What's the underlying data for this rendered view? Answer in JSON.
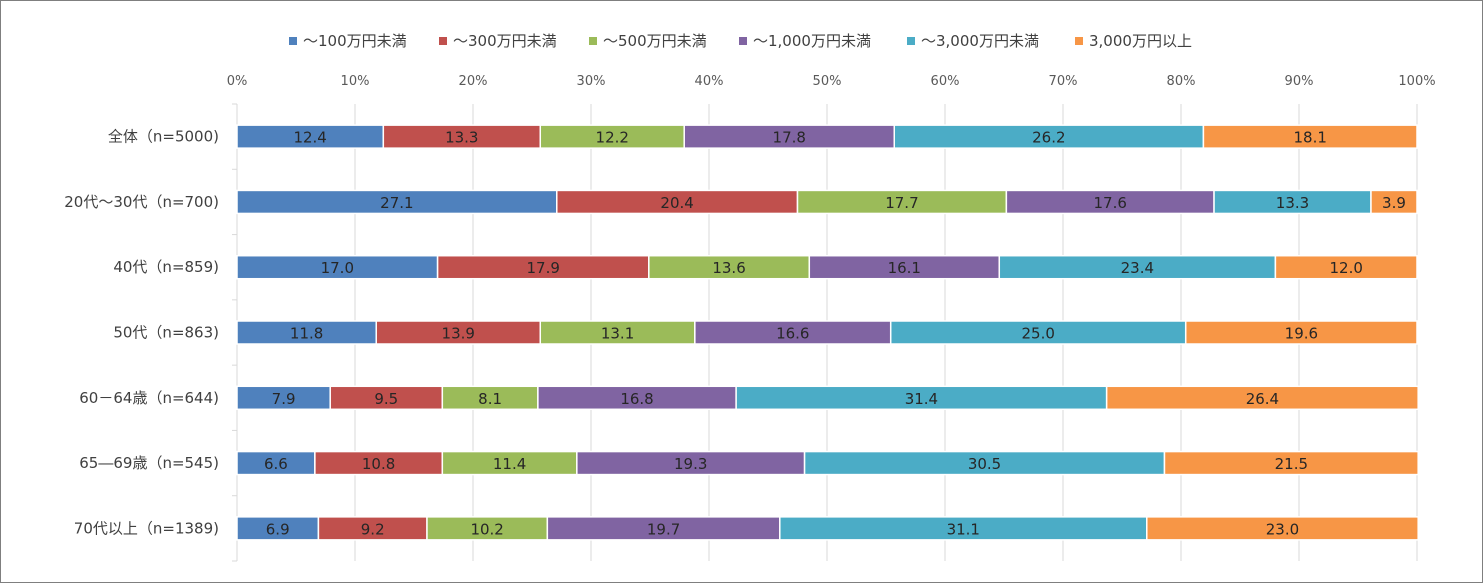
{
  "chart_data": {
    "type": "bar",
    "orientation": "horizontal",
    "stacked": "percent",
    "categories": [
      "全体（n=5000)",
      "20代～30代（n=700)",
      "40代（n=859)",
      "50代（n=863)",
      "60－64歳（n=644)",
      "65―69歳（n=545)",
      "70代以上（n=1389)"
    ],
    "series": [
      {
        "name": "～100万円未満",
        "color": "#4f81bd",
        "values": [
          12.4,
          27.1,
          17.0,
          11.8,
          7.9,
          6.6,
          6.9
        ]
      },
      {
        "name": "～300万円未満",
        "color": "#c0504d",
        "values": [
          13.3,
          20.4,
          17.9,
          13.9,
          9.5,
          10.8,
          9.2
        ]
      },
      {
        "name": "～500万円未満",
        "color": "#9bbb59",
        "values": [
          12.2,
          17.7,
          13.6,
          13.1,
          8.1,
          11.4,
          10.2
        ]
      },
      {
        "name": "～1,000万円未満",
        "color": "#8064a2",
        "values": [
          17.8,
          17.6,
          16.1,
          16.6,
          16.8,
          19.3,
          19.7
        ]
      },
      {
        "name": "～3,000万円未満",
        "color": "#4bacc6",
        "values": [
          26.2,
          13.3,
          23.4,
          25.0,
          31.4,
          30.5,
          31.1
        ]
      },
      {
        "name": "3,000万円以上",
        "color": "#f79646",
        "values": [
          18.1,
          3.9,
          12.0,
          19.6,
          26.4,
          21.5,
          23.0
        ]
      }
    ],
    "value_labels": [
      [
        "12.4",
        "13.3",
        "12.2",
        "17.8",
        "26.2",
        "18.1"
      ],
      [
        "27.1",
        "20.4",
        "17.7",
        "17.6",
        "13.3",
        "3.9"
      ],
      [
        "17.0",
        "17.9",
        "13.6",
        "16.1",
        "23.4",
        "12.0"
      ],
      [
        "11.8",
        "13.9",
        "13.1",
        "16.6",
        "25.0",
        "19.6"
      ],
      [
        "7.9",
        "9.5",
        "8.1",
        "16.8",
        "31.4",
        "26.4"
      ],
      [
        "6.6",
        "10.8",
        "11.4",
        "19.3",
        "30.5",
        "21.5"
      ],
      [
        "6.9",
        "9.2",
        "10.2",
        "19.7",
        "31.1",
        "23.0"
      ]
    ],
    "xticks": [
      "0%",
      "10%",
      "20%",
      "30%",
      "40%",
      "50%",
      "60%",
      "70%",
      "80%",
      "90%",
      "100%"
    ],
    "xlim": [
      0,
      100
    ],
    "xaxis_position": "top",
    "legend_position": "top",
    "grid": true
  }
}
